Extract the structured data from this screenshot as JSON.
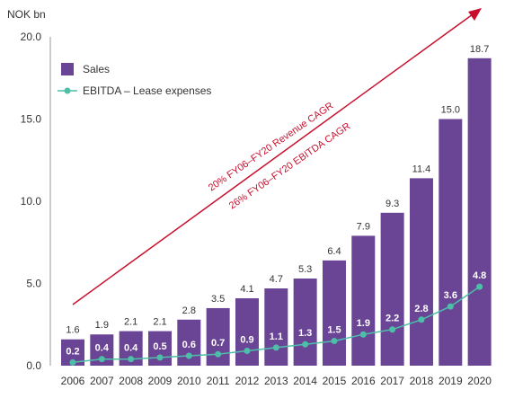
{
  "chart_data": {
    "type": "bar",
    "ylabel": "NOK bn",
    "ylim": [
      0,
      20
    ],
    "yticks": [
      "0.0",
      "5.0",
      "10.0",
      "15.0",
      "20.0"
    ],
    "categories": [
      "2006",
      "2007",
      "2008",
      "2009",
      "2010",
      "2011",
      "2012",
      "2013",
      "2014",
      "2015",
      "2016",
      "2017",
      "2018",
      "2019",
      "2020"
    ],
    "series": [
      {
        "name": "Sales",
        "type": "bar",
        "values": [
          1.6,
          1.9,
          2.1,
          2.1,
          2.8,
          3.5,
          4.1,
          4.7,
          5.3,
          6.4,
          7.9,
          9.3,
          11.4,
          15.0,
          18.7
        ],
        "labels": [
          "1.6",
          "1.9",
          "2.1",
          "2.1",
          "2.8",
          "3.5",
          "4.1",
          "4.7",
          "5.3",
          "6.4",
          "7.9",
          "9.3",
          "11.4",
          "15.0",
          "18.7"
        ]
      },
      {
        "name": "EBITDA – Lease expenses",
        "type": "line",
        "values": [
          0.2,
          0.4,
          0.4,
          0.5,
          0.6,
          0.7,
          0.9,
          1.1,
          1.3,
          1.5,
          1.9,
          2.2,
          2.8,
          3.6,
          4.8
        ],
        "labels": [
          "0.2",
          "0.4",
          "0.4",
          "0.5",
          "0.6",
          "0.7",
          "0.9",
          "1.1",
          "1.3",
          "1.5",
          "1.9",
          "2.2",
          "2.8",
          "3.6",
          "4.8"
        ]
      }
    ],
    "annotations": [
      "20% FY06–FY20 Revenue CAGR",
      "26% FY06–FY20 EBITDA CAGR"
    ],
    "legend": "top-left",
    "grid": false
  },
  "colors": {
    "bar": "#6a4595",
    "line": "#4dbfa8",
    "arrow": "#c8102e",
    "axis": "#999999"
  }
}
